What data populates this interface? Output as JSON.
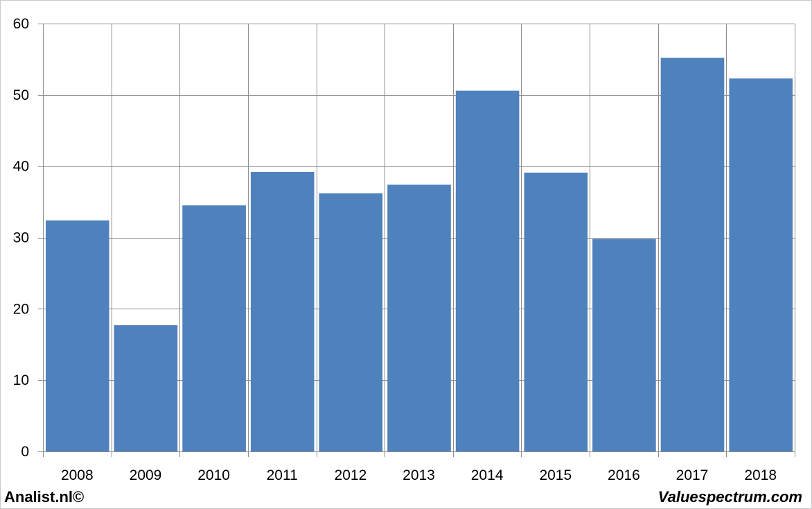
{
  "chart_data": {
    "type": "bar",
    "categories": [
      "2008",
      "2009",
      "2010",
      "2011",
      "2012",
      "2013",
      "2014",
      "2015",
      "2016",
      "2017",
      "2018"
    ],
    "values": [
      32.4,
      17.7,
      34.5,
      39.2,
      36.2,
      37.4,
      50.6,
      39.1,
      29.8,
      55.2,
      52.3
    ],
    "title": "",
    "xlabel": "",
    "ylabel": "",
    "ylim": [
      0,
      60
    ],
    "yticks": [
      "0",
      "10",
      "20",
      "30",
      "40",
      "50",
      "60"
    ],
    "grid": true,
    "legend": "none",
    "bar_color": "#4F81BD"
  },
  "footer": {
    "left_text": "Analist.nl©",
    "right_text": "Valuespectrum.com"
  }
}
